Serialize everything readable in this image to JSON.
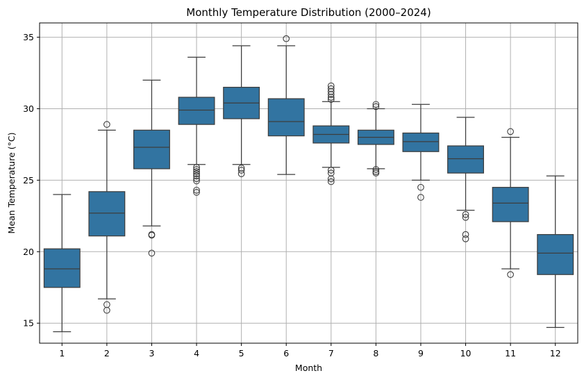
{
  "chart_data": {
    "type": "box",
    "title": "Monthly Temperature Distribution (2000–2024)",
    "xlabel": "Month",
    "ylabel": "Mean Temperature (°C)",
    "ylim": [
      13.6,
      36.0
    ],
    "yticks": [
      15,
      20,
      25,
      30,
      35
    ],
    "grid": true,
    "box_color": "#3274a1",
    "line_color": "#3d3d3d",
    "categories": [
      "1",
      "2",
      "3",
      "4",
      "5",
      "6",
      "7",
      "8",
      "9",
      "10",
      "11",
      "12"
    ],
    "series": [
      {
        "category": "1",
        "whisker_low": 14.4,
        "q1": 17.5,
        "median": 18.8,
        "q3": 20.2,
        "whisker_high": 24.0,
        "outliers": []
      },
      {
        "category": "2",
        "whisker_low": 16.7,
        "q1": 21.1,
        "median": 22.7,
        "q3": 24.2,
        "whisker_high": 28.5,
        "outliers": [
          28.9,
          16.3,
          15.9
        ]
      },
      {
        "category": "3",
        "whisker_low": 21.8,
        "q1": 25.8,
        "median": 27.3,
        "q3": 28.5,
        "whisker_high": 32.0,
        "outliers": [
          21.2,
          21.15,
          19.9
        ]
      },
      {
        "category": "4",
        "whisker_low": 26.1,
        "q1": 28.9,
        "median": 29.9,
        "q3": 30.8,
        "whisker_high": 33.6,
        "outliers": [
          25.9,
          25.75,
          25.6,
          25.45,
          25.3,
          25.1,
          24.95,
          24.3,
          24.15
        ]
      },
      {
        "category": "5",
        "whisker_low": 26.1,
        "q1": 29.3,
        "median": 30.4,
        "q3": 31.5,
        "whisker_high": 34.4,
        "outliers": [
          25.85,
          25.7,
          25.45
        ]
      },
      {
        "category": "6",
        "whisker_low": 25.4,
        "q1": 28.1,
        "median": 29.1,
        "q3": 30.7,
        "whisker_high": 34.4,
        "outliers": [
          34.9
        ]
      },
      {
        "category": "7",
        "whisker_low": 25.9,
        "q1": 27.6,
        "median": 28.2,
        "q3": 28.8,
        "whisker_high": 30.5,
        "outliers": [
          31.6,
          31.4,
          31.2,
          31.0,
          30.8,
          30.65,
          25.7,
          25.5,
          25.1,
          24.9
        ]
      },
      {
        "category": "8",
        "whisker_low": 25.8,
        "q1": 27.5,
        "median": 28.0,
        "q3": 28.5,
        "whisker_high": 30.0,
        "outliers": [
          30.3,
          30.15,
          25.75,
          25.6,
          25.5
        ]
      },
      {
        "category": "9",
        "whisker_low": 25.0,
        "q1": 27.0,
        "median": 27.7,
        "q3": 28.3,
        "whisker_high": 30.3,
        "outliers": [
          24.5,
          23.8
        ]
      },
      {
        "category": "10",
        "whisker_low": 22.9,
        "q1": 25.5,
        "median": 26.5,
        "q3": 27.4,
        "whisker_high": 29.4,
        "outliers": [
          22.6,
          22.4,
          21.2,
          20.9
        ]
      },
      {
        "category": "11",
        "whisker_low": 18.8,
        "q1": 22.1,
        "median": 23.4,
        "q3": 24.5,
        "whisker_high": 28.0,
        "outliers": [
          28.4,
          18.4
        ]
      },
      {
        "category": "12",
        "whisker_low": 14.7,
        "q1": 18.4,
        "median": 19.9,
        "q3": 21.2,
        "whisker_high": 25.3,
        "outliers": []
      }
    ]
  }
}
